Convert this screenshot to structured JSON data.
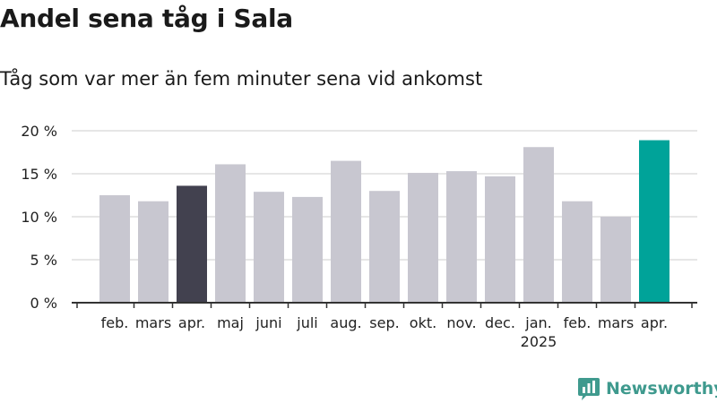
{
  "header": {
    "title": "Andel sena tåg i Sala",
    "subtitle": "Tåg som var mer än fem minuter sena vid ankomst"
  },
  "brand": {
    "name": "Newsworthy",
    "icon": "newsworthy-chart-icon",
    "color": "#3f9a8e"
  },
  "chart_data": {
    "type": "bar",
    "categories": [
      "feb.",
      "mars",
      "apr.",
      "maj",
      "juni",
      "juli",
      "aug.",
      "sep.",
      "okt.",
      "nov.",
      "dec.",
      "jan.",
      "feb.",
      "mars",
      "apr."
    ],
    "year_label": {
      "text": "2025",
      "category_index": 11
    },
    "series": [
      {
        "values": [
          12.5,
          11.8,
          13.6,
          16.1,
          12.9,
          12.3,
          16.5,
          13.0,
          15.1,
          15.3,
          14.7,
          18.1,
          11.8,
          10.0,
          18.9
        ]
      }
    ],
    "bar_colors": [
      "#c8c7d0",
      "#c8c7d0",
      "#42414f",
      "#c8c7d0",
      "#c8c7d0",
      "#c8c7d0",
      "#c8c7d0",
      "#c8c7d0",
      "#c8c7d0",
      "#c8c7d0",
      "#c8c7d0",
      "#c8c7d0",
      "#c8c7d0",
      "#c8c7d0",
      "#00a399"
    ],
    "yticks": [
      0,
      5,
      10,
      15,
      20
    ],
    "ytick_labels": [
      "0 %",
      "5 %",
      "10 %",
      "15 %",
      "20 %"
    ],
    "ylim": [
      0,
      20
    ],
    "grid": true,
    "xlabel": "",
    "ylabel": ""
  }
}
